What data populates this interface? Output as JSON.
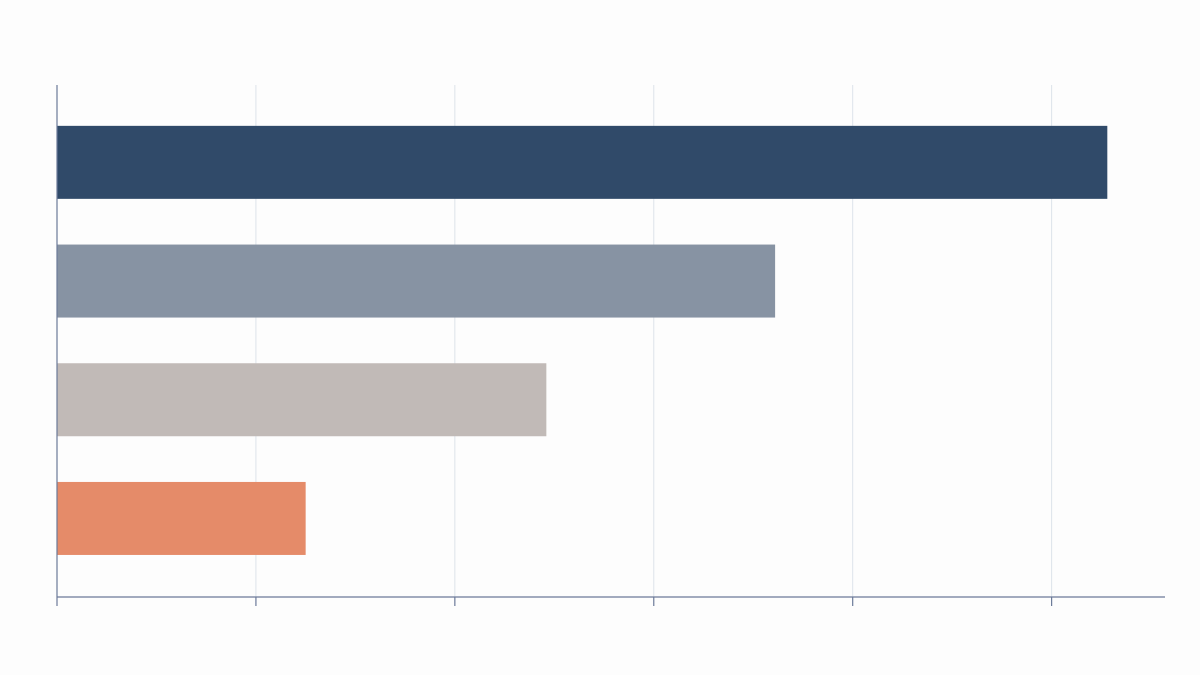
{
  "chart_data": {
    "type": "barh",
    "categories": [
      null,
      null,
      null,
      null
    ],
    "values": [
      5.28,
      3.61,
      2.46,
      1.25
    ],
    "colors": [
      "#304a69",
      "#8793a3",
      "#c1bab7",
      "#e58b69"
    ],
    "xlim": [
      0,
      5.57
    ],
    "xticks": [
      0,
      1,
      2,
      3,
      4,
      5
    ],
    "grid": true
  }
}
